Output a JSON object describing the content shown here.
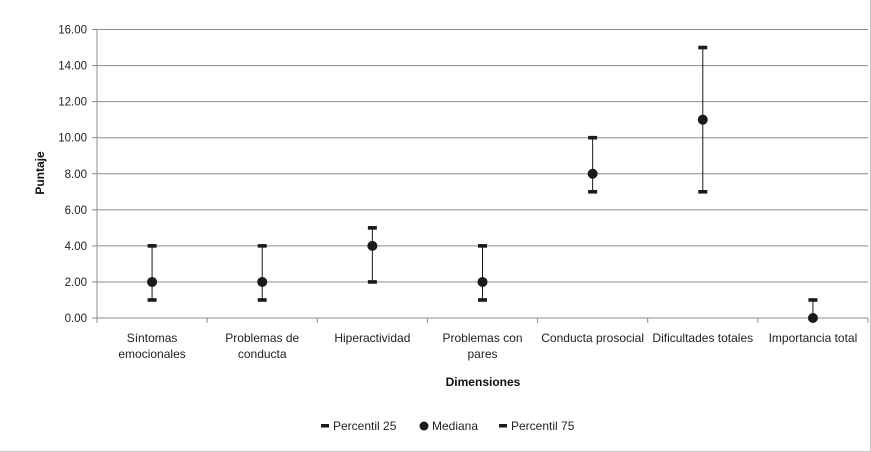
{
  "chart_data": {
    "type": "scatter",
    "title": "",
    "xlabel": "Dimensiones",
    "ylabel": "Puntaje",
    "ylim": [
      0,
      16
    ],
    "yticks": [
      "0.00",
      "2.00",
      "4.00",
      "6.00",
      "8.00",
      "10.00",
      "12.00",
      "14.00",
      "16.00"
    ],
    "grid": true,
    "legend_position": "bottom",
    "categories": [
      [
        "Síntomas",
        "emocionales"
      ],
      [
        "Problemas de",
        "conducta"
      ],
      [
        "Hiperactividad"
      ],
      [
        "Problemas con",
        "pares"
      ],
      [
        "Conducta prosocial"
      ],
      [
        "Dificultades totales"
      ],
      [
        "Importancia total"
      ]
    ],
    "series": [
      {
        "name": "Percentil 25",
        "marker": "dash",
        "values": [
          1,
          1,
          2,
          1,
          7,
          7,
          0
        ]
      },
      {
        "name": "Mediana",
        "marker": "circle",
        "values": [
          2,
          2,
          4,
          2,
          8,
          11,
          0
        ]
      },
      {
        "name": "Percentil 75",
        "marker": "dash",
        "values": [
          4,
          4,
          5,
          4,
          10,
          15,
          1
        ]
      }
    ],
    "colors": {
      "marker": "#1a1a1a",
      "grid": "#8c8c8c",
      "axis": "#8c8c8c"
    }
  }
}
